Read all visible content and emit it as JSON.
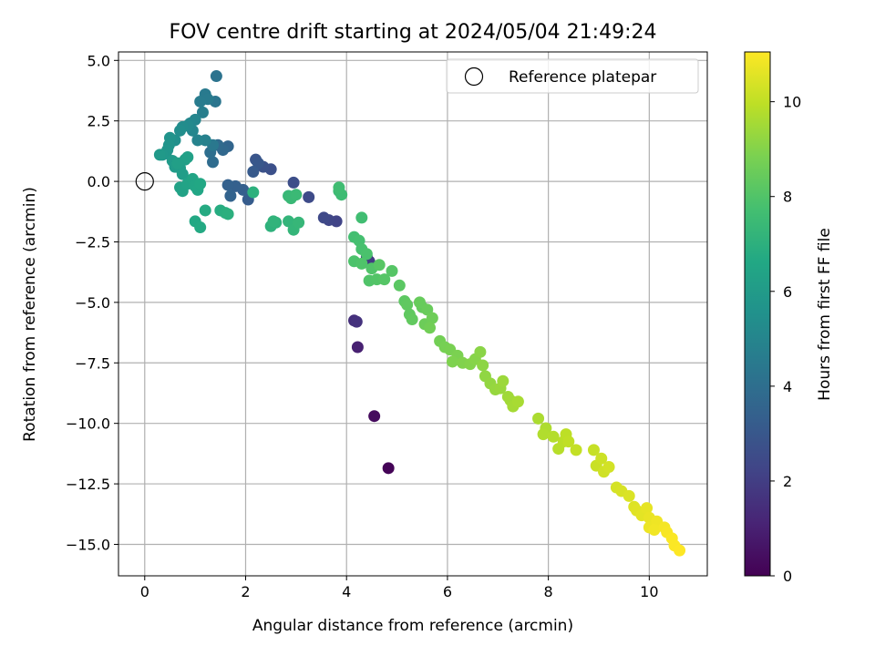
{
  "chart_data": {
    "type": "scatter",
    "title": "FOV centre drift starting at 2024/05/04 21:49:24",
    "xlabel": "Angular distance from reference (arcmin)",
    "ylabel": "Rotation from reference (arcmin)",
    "colorbar_label": "Hours from first FF file",
    "xlim": [
      -0.52,
      11.15
    ],
    "ylim": [
      -16.3,
      5.35
    ],
    "clim": [
      0,
      11.05
    ],
    "colormap": "viridis",
    "grid": true,
    "legend_placement": "top-right",
    "legend_entries": [
      "Reference platepar"
    ],
    "x_ticks": [
      "0",
      "2",
      "4",
      "6",
      "8",
      "10"
    ],
    "x_tick_values": [
      0,
      2,
      4,
      6,
      8,
      10
    ],
    "y_ticks": [
      "5.0",
      "2.5",
      "0.0",
      "−2.5",
      "−5.0",
      "−7.5",
      "−10.0",
      "−12.5",
      "−15.0"
    ],
    "y_tick_values": [
      5.0,
      2.5,
      0.0,
      -2.5,
      -5.0,
      -7.5,
      -10.0,
      -12.5,
      -15.0
    ],
    "colorbar_ticks": [
      "0",
      "2",
      "4",
      "6",
      "8",
      "10"
    ],
    "colorbar_tick_values": [
      0,
      2,
      4,
      6,
      8,
      10
    ],
    "reference_point": {
      "x": 0,
      "y": 0
    },
    "points": [
      [
        4.83,
        -11.85,
        0.1
      ],
      [
        4.55,
        -9.7,
        0.3
      ],
      [
        4.22,
        -6.85,
        1.0
      ],
      [
        4.15,
        -5.75,
        1.5
      ],
      [
        4.2,
        -5.8,
        1.6
      ],
      [
        4.4,
        -3.1,
        1.8
      ],
      [
        4.45,
        -3.3,
        1.9
      ],
      [
        3.8,
        -1.65,
        2.2
      ],
      [
        3.65,
        -1.6,
        2.3
      ],
      [
        3.55,
        -1.5,
        2.4
      ],
      [
        3.25,
        -0.65,
        2.5
      ],
      [
        2.95,
        -0.05,
        2.6
      ],
      [
        2.5,
        0.5,
        2.7
      ],
      [
        2.35,
        0.6,
        2.8
      ],
      [
        2.2,
        0.9,
        2.9
      ],
      [
        2.25,
        0.75,
        3.0
      ],
      [
        2.15,
        0.4,
        3.1
      ],
      [
        2.05,
        -0.75,
        3.2
      ],
      [
        1.95,
        -0.35,
        3.3
      ],
      [
        1.8,
        -0.2,
        3.35
      ],
      [
        1.65,
        -0.15,
        3.4
      ],
      [
        1.7,
        -0.6,
        3.5
      ],
      [
        1.65,
        1.45,
        3.6
      ],
      [
        1.55,
        1.3,
        3.7
      ],
      [
        1.45,
        1.5,
        3.8
      ],
      [
        1.35,
        0.8,
        3.9
      ],
      [
        1.3,
        1.2,
        4.0
      ],
      [
        1.42,
        4.35,
        4.2
      ],
      [
        1.4,
        3.3,
        4.3
      ],
      [
        1.35,
        1.5,
        4.4
      ],
      [
        1.2,
        3.6,
        4.5
      ],
      [
        1.25,
        3.4,
        4.55
      ],
      [
        1.1,
        3.3,
        4.6
      ],
      [
        1.15,
        2.85,
        4.7
      ],
      [
        1.2,
        1.7,
        4.8
      ],
      [
        1.05,
        1.7,
        4.9
      ],
      [
        1.0,
        2.55,
        5.0
      ],
      [
        0.95,
        2.1,
        5.05
      ],
      [
        0.9,
        2.4,
        5.1
      ],
      [
        0.85,
        2.3,
        5.2
      ],
      [
        0.75,
        2.25,
        5.3
      ],
      [
        0.7,
        2.1,
        5.4
      ],
      [
        0.6,
        1.7,
        5.5
      ],
      [
        0.5,
        1.8,
        5.6
      ],
      [
        0.48,
        1.5,
        5.65
      ],
      [
        0.45,
        1.3,
        5.7
      ],
      [
        0.42,
        1.15,
        5.75
      ],
      [
        0.35,
        1.1,
        5.8
      ],
      [
        0.3,
        1.1,
        5.9
      ],
      [
        0.55,
        0.85,
        5.95
      ],
      [
        0.6,
        0.6,
        6.0
      ],
      [
        0.7,
        0.55,
        6.05
      ],
      [
        0.75,
        0.3,
        6.1
      ],
      [
        0.8,
        0.9,
        6.15
      ],
      [
        0.65,
        0.75,
        6.2
      ],
      [
        0.85,
        1.0,
        6.25
      ],
      [
        0.7,
        -0.25,
        6.3
      ],
      [
        0.75,
        -0.4,
        6.35
      ],
      [
        0.85,
        -0.1,
        6.4
      ],
      [
        0.95,
        0.1,
        6.45
      ],
      [
        1.0,
        -0.2,
        6.5
      ],
      [
        1.05,
        -0.35,
        6.55
      ],
      [
        1.1,
        -0.1,
        6.6
      ],
      [
        1.0,
        -1.65,
        6.65
      ],
      [
        1.1,
        -1.9,
        6.7
      ],
      [
        1.2,
        -1.2,
        6.75
      ],
      [
        1.5,
        -1.2,
        6.8
      ],
      [
        1.6,
        -1.3,
        6.9
      ],
      [
        1.65,
        -1.35,
        6.95
      ],
      [
        2.15,
        -0.45,
        7.0
      ],
      [
        2.5,
        -1.85,
        7.05
      ],
      [
        2.6,
        -1.7,
        7.1
      ],
      [
        2.55,
        -1.65,
        7.15
      ],
      [
        2.85,
        -1.65,
        7.2
      ],
      [
        2.95,
        -2.0,
        7.25
      ],
      [
        3.05,
        -1.7,
        7.3
      ],
      [
        2.85,
        -0.6,
        7.35
      ],
      [
        2.9,
        -0.7,
        7.4
      ],
      [
        3.0,
        -0.55,
        7.45
      ],
      [
        3.85,
        -0.4,
        7.5
      ],
      [
        3.9,
        -0.55,
        7.55
      ],
      [
        3.85,
        -0.25,
        7.6
      ],
      [
        4.3,
        -1.5,
        7.65
      ],
      [
        4.15,
        -2.3,
        7.7
      ],
      [
        4.25,
        -2.45,
        7.75
      ],
      [
        4.3,
        -2.8,
        7.8
      ],
      [
        4.4,
        -3.0,
        7.85
      ],
      [
        4.15,
        -3.3,
        7.9
      ],
      [
        4.3,
        -3.4,
        7.95
      ],
      [
        4.5,
        -3.6,
        8.0
      ],
      [
        4.45,
        -4.1,
        8.0
      ],
      [
        4.6,
        -4.05,
        8.05
      ],
      [
        4.75,
        -4.05,
        8.1
      ],
      [
        4.9,
        -3.7,
        8.1
      ],
      [
        4.65,
        -3.45,
        8.15
      ],
      [
        5.05,
        -4.3,
        8.2
      ],
      [
        5.15,
        -4.95,
        8.25
      ],
      [
        5.2,
        -5.1,
        8.3
      ],
      [
        5.25,
        -5.5,
        8.3
      ],
      [
        5.3,
        -5.7,
        8.35
      ],
      [
        5.5,
        -5.2,
        8.4
      ],
      [
        5.45,
        -5.0,
        8.45
      ],
      [
        5.6,
        -5.3,
        8.5
      ],
      [
        5.55,
        -5.9,
        8.55
      ],
      [
        5.7,
        -5.65,
        8.6
      ],
      [
        5.65,
        -6.05,
        8.65
      ],
      [
        5.85,
        -6.6,
        8.7
      ],
      [
        5.95,
        -6.85,
        8.75
      ],
      [
        6.05,
        -6.95,
        8.8
      ],
      [
        6.2,
        -7.2,
        8.85
      ],
      [
        6.1,
        -7.45,
        8.9
      ],
      [
        6.3,
        -7.5,
        8.95
      ],
      [
        6.45,
        -7.55,
        9.0
      ],
      [
        6.55,
        -7.35,
        9.05
      ],
      [
        6.65,
        -7.05,
        9.1
      ],
      [
        6.7,
        -7.6,
        9.15
      ],
      [
        6.75,
        -8.05,
        9.2
      ],
      [
        6.85,
        -8.35,
        9.25
      ],
      [
        6.95,
        -8.6,
        9.3
      ],
      [
        7.05,
        -8.55,
        9.35
      ],
      [
        7.1,
        -8.25,
        9.4
      ],
      [
        7.2,
        -8.9,
        9.45
      ],
      [
        7.25,
        -9.05,
        9.5
      ],
      [
        7.3,
        -9.3,
        9.55
      ],
      [
        7.4,
        -9.1,
        9.6
      ],
      [
        7.8,
        -9.8,
        9.65
      ],
      [
        7.95,
        -10.2,
        9.7
      ],
      [
        7.9,
        -10.45,
        9.75
      ],
      [
        8.1,
        -10.55,
        9.8
      ],
      [
        8.2,
        -11.05,
        9.85
      ],
      [
        8.3,
        -10.75,
        9.9
      ],
      [
        8.35,
        -10.45,
        9.95
      ],
      [
        8.4,
        -10.75,
        10.0
      ],
      [
        8.55,
        -11.1,
        10.05
      ],
      [
        8.9,
        -11.1,
        10.1
      ],
      [
        8.95,
        -11.75,
        10.15
      ],
      [
        9.05,
        -11.45,
        10.2
      ],
      [
        9.1,
        -12.0,
        10.25
      ],
      [
        9.2,
        -11.8,
        10.3
      ],
      [
        9.35,
        -12.65,
        10.35
      ],
      [
        9.45,
        -12.8,
        10.4
      ],
      [
        9.6,
        -13.0,
        10.45
      ],
      [
        9.7,
        -13.45,
        10.5
      ],
      [
        9.75,
        -13.6,
        10.55
      ],
      [
        9.85,
        -13.8,
        10.6
      ],
      [
        9.95,
        -13.5,
        10.65
      ],
      [
        10.0,
        -13.9,
        10.7
      ],
      [
        10.0,
        -14.3,
        10.75
      ],
      [
        10.15,
        -14.05,
        10.8
      ],
      [
        10.1,
        -14.4,
        10.85
      ],
      [
        10.3,
        -14.3,
        10.9
      ],
      [
        10.35,
        -14.5,
        10.95
      ],
      [
        10.45,
        -14.75,
        11.0
      ],
      [
        10.5,
        -15.05,
        11.02
      ],
      [
        10.6,
        -15.25,
        11.05
      ]
    ]
  }
}
